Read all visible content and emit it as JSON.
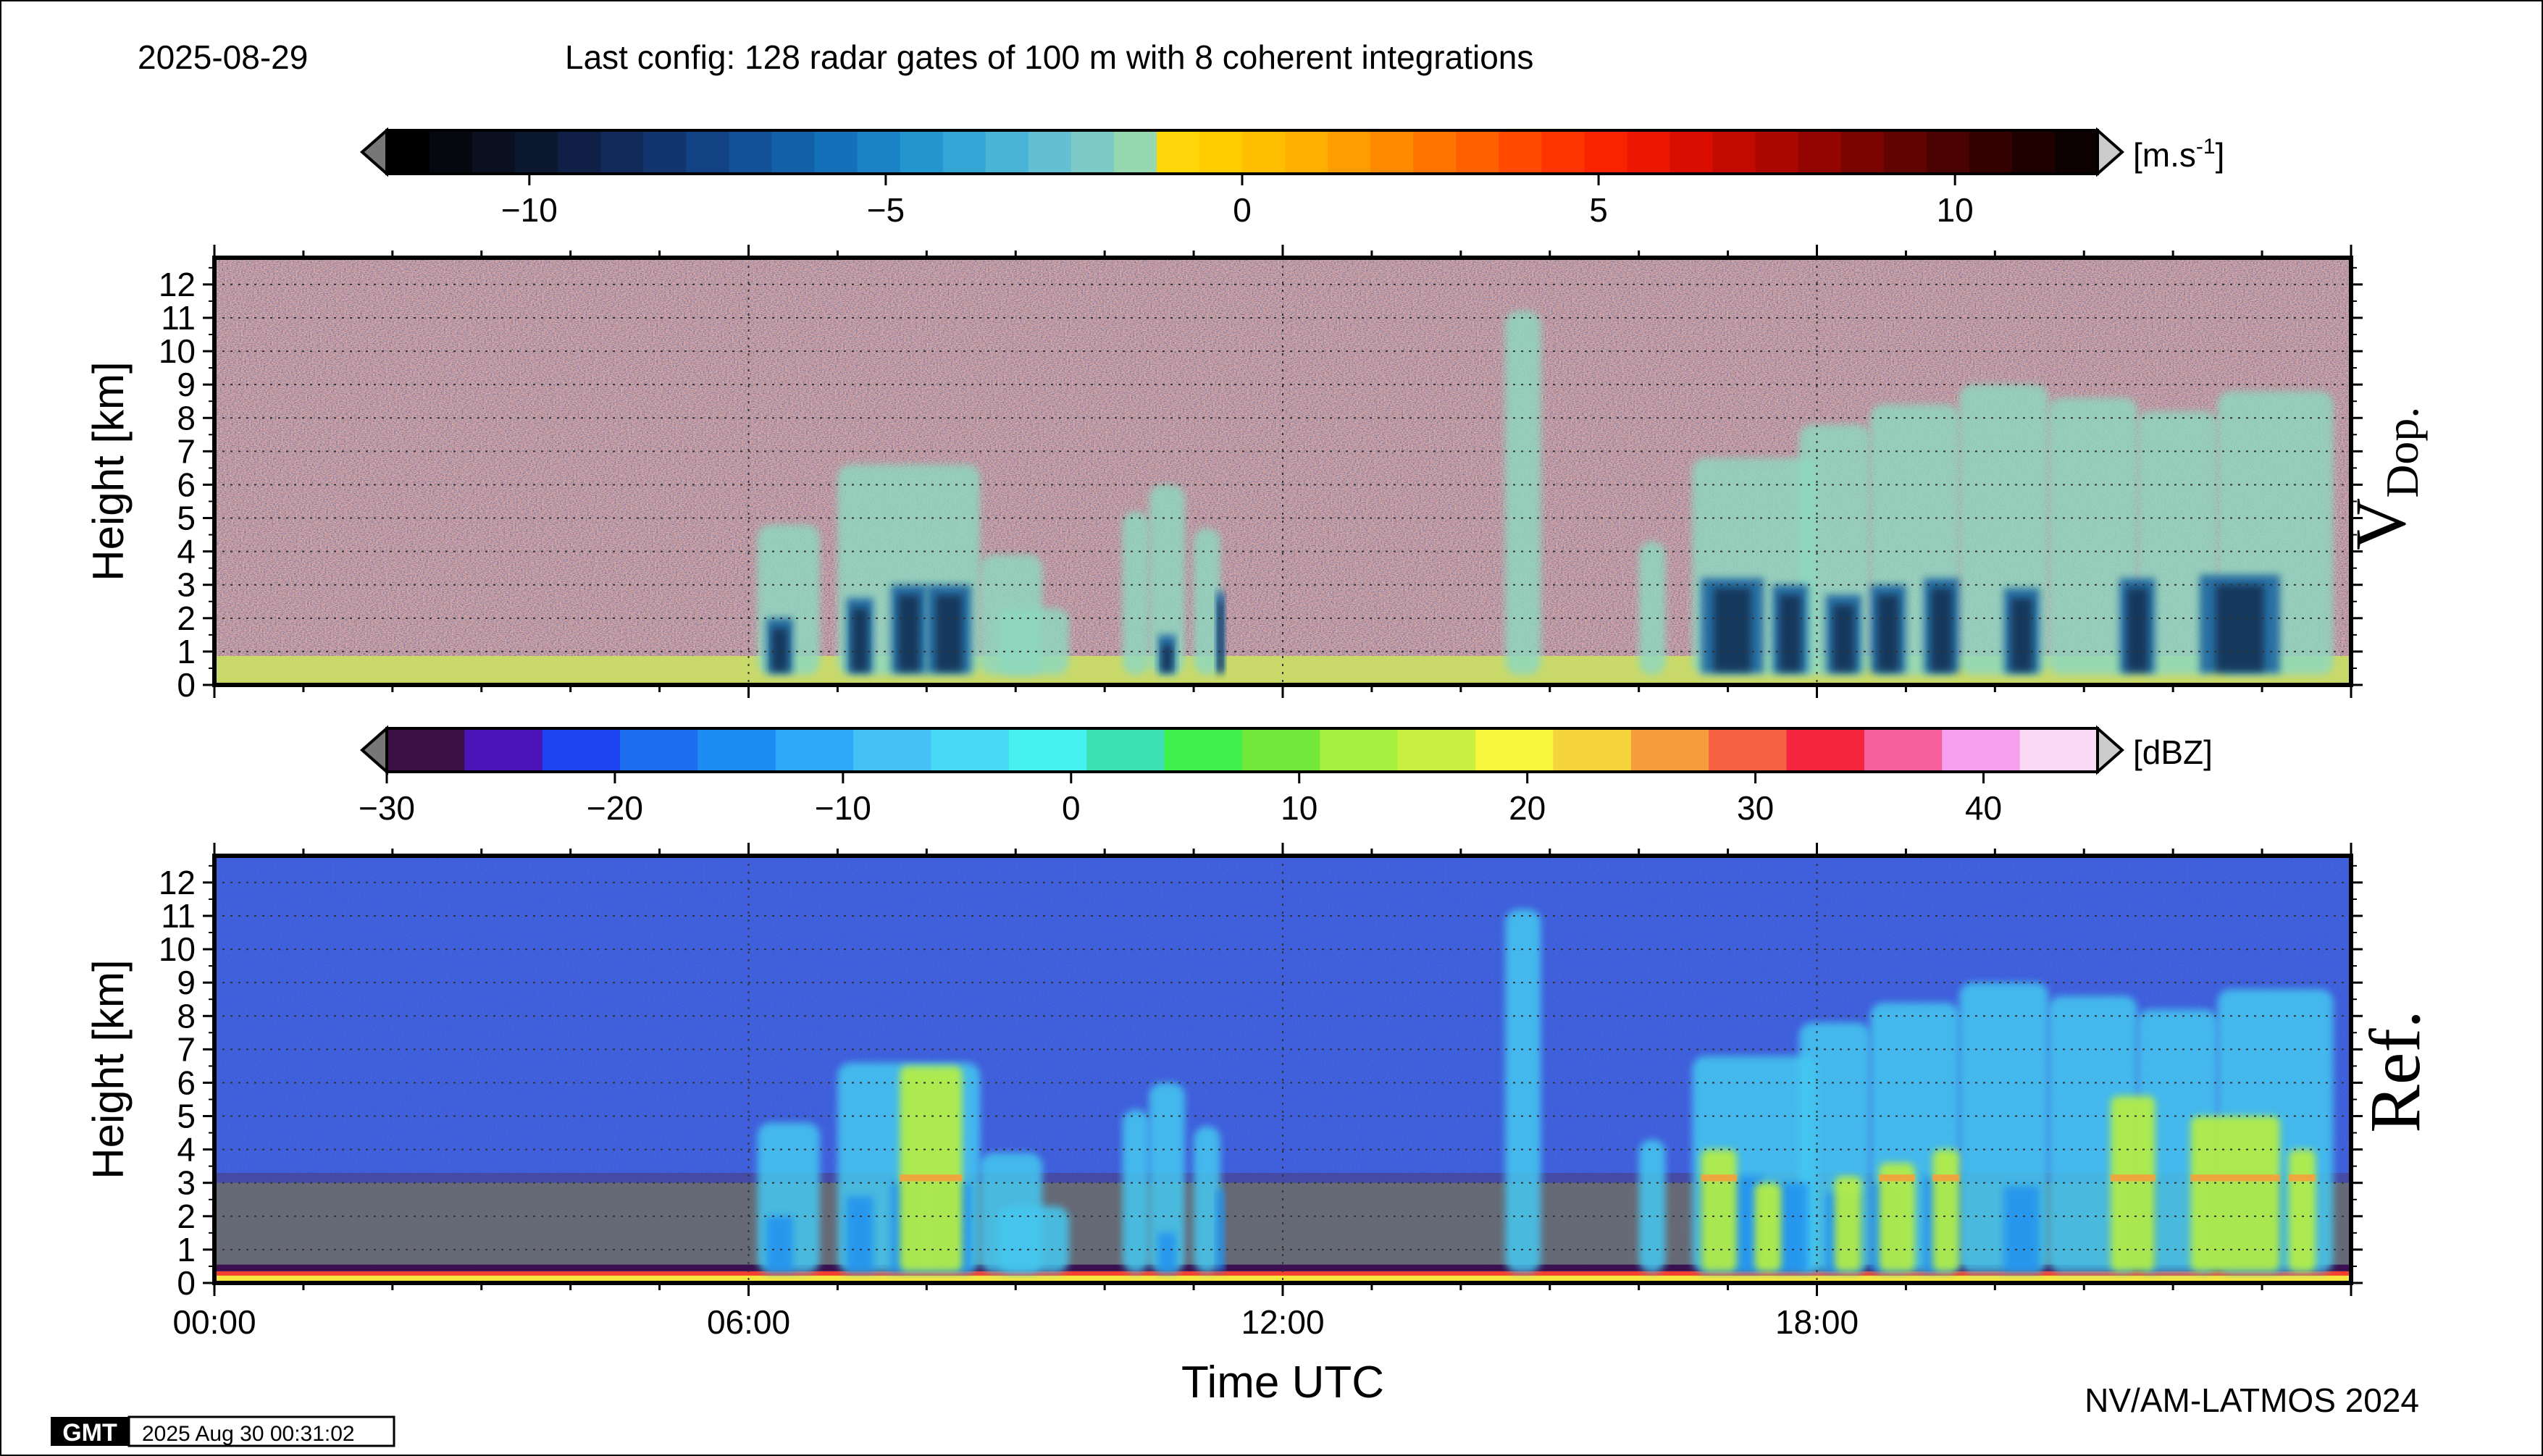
{
  "header": {
    "date": "2025-08-29",
    "config": "Last config: 128 radar gates of 100 m with 8 coherent integrations"
  },
  "footer": {
    "credit": "NV/AM-LATMOS 2024",
    "gmt_logo": "GMT",
    "timestamp": "2025 Aug 30 00:31:02"
  },
  "chart_data": [
    {
      "type": "heatmap",
      "panel_label": "V",
      "panel_label_sub": "Dop.",
      "ylabel": "Height [km]",
      "xlabel": "Time UTC",
      "xlim_hours": [
        0,
        24
      ],
      "ylim_km": [
        0,
        12.8
      ],
      "x_tick_labels": [
        "00:00",
        "06:00",
        "12:00",
        "18:00"
      ],
      "y_tick_labels": [
        "0",
        "1",
        "2",
        "3",
        "4",
        "5",
        "6",
        "7",
        "8",
        "9",
        "10",
        "11",
        "12"
      ],
      "colorbar": {
        "unit": "[m.s",
        "unit_sup": "-1",
        "unit_close": "]",
        "range": [
          -12,
          12
        ],
        "tick_labels": [
          "−10",
          "−5",
          "0",
          "5",
          "10"
        ],
        "tick_values": [
          -10,
          -5,
          0,
          5,
          10
        ],
        "colors": [
          "#000000",
          "#06080f",
          "#0a1020",
          "#0c1730",
          "#0f1f45",
          "#112a5a",
          "#12356f",
          "#124284",
          "#125097",
          "#1260a8",
          "#1470b8",
          "#1a82c5",
          "#2395cf",
          "#33a6d5",
          "#49b4d6",
          "#63c0d2",
          "#7dcbc6",
          "#96d8b0",
          "#ffd60a",
          "#ffcc00",
          "#ffbf00",
          "#ffb000",
          "#ff9d00",
          "#ff8a00",
          "#ff7500",
          "#ff6000",
          "#ff4a00",
          "#ff3500",
          "#f92300",
          "#ec1700",
          "#d90e00",
          "#c30a00",
          "#ab0700",
          "#920500",
          "#7a0400",
          "#610300",
          "#4a0202",
          "#340101",
          "#1f0000",
          "#0d0000"
        ],
        "under_color": "#777777",
        "over_color": "#cccccc"
      },
      "features": {
        "surface_layer_km": 0.8,
        "surface_layer_color": "#c8d96a",
        "cloud_color": "#8ed8c0",
        "precip_color": "#1460a0"
      }
    },
    {
      "type": "heatmap",
      "panel_label": "Ref.",
      "ylabel": "Height [km]",
      "xlabel": "Time UTC",
      "xlim_hours": [
        0,
        24
      ],
      "ylim_km": [
        0,
        12.8
      ],
      "x_tick_labels": [
        "00:00",
        "06:00",
        "12:00",
        "18:00"
      ],
      "y_tick_labels": [
        "0",
        "1",
        "2",
        "3",
        "4",
        "5",
        "6",
        "7",
        "8",
        "9",
        "10",
        "11",
        "12"
      ],
      "colorbar": {
        "unit": "[dBZ]",
        "range": [
          -30,
          45
        ],
        "tick_labels": [
          "−30",
          "−20",
          "−10",
          "0",
          "10",
          "20",
          "30",
          "40"
        ],
        "tick_values": [
          -30,
          -20,
          -10,
          0,
          10,
          20,
          30,
          40
        ],
        "colors": [
          "#3d1145",
          "#4a14b8",
          "#1e43f0",
          "#1d6ff0",
          "#1d8cf3",
          "#2ea8f8",
          "#44c2f6",
          "#47d8f5",
          "#45f0ee",
          "#3de0b2",
          "#3ef04a",
          "#72e83a",
          "#a8f040",
          "#c8f040",
          "#f7f53c",
          "#f5d43c",
          "#f79c3c",
          "#f56040",
          "#f52540",
          "#f5609c",
          "#f5a0ee",
          "#fbdaf5"
        ],
        "under_color": "#777777",
        "over_color": "#cccccc"
      },
      "features": {
        "background_color": "#2346d8",
        "low_layer_top_km": 3.0,
        "low_layer_color": "#6a6a6a",
        "surface_color": "#f7e640",
        "cloud_color": "#45c8f0",
        "core_color": "#b8f040",
        "bright_band_color": "#f5a03c"
      }
    }
  ]
}
